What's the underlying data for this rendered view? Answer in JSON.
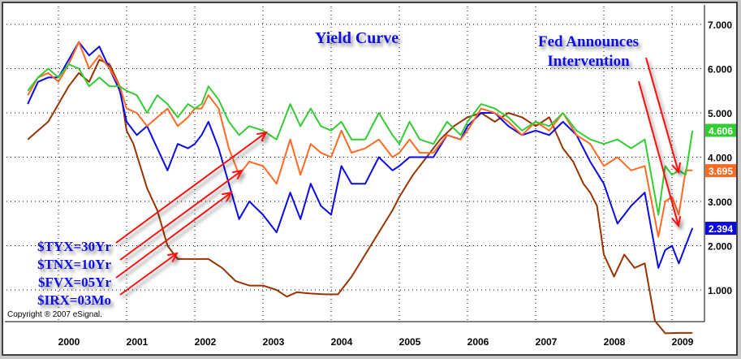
{
  "chart_data": {
    "type": "line",
    "title": "Yield Curve",
    "xlabel": "",
    "ylabel": "",
    "ylim": [
      0,
      7.3
    ],
    "x_tick_labels": [
      "2000",
      "2001",
      "2002",
      "2003",
      "2004",
      "2005",
      "2006",
      "2007",
      "2008",
      "2009"
    ],
    "y_tick_labels": [
      "7.000",
      "6.000",
      "5.000",
      "4.000",
      "3.000",
      "2.000",
      "1.000"
    ],
    "grid": true,
    "legend_position": "lower-left (text annotations)",
    "series": [
      {
        "name": "$TYX=30Yr",
        "color": "#33cc33",
        "last_value": "4.606",
        "x": [
          1999.55,
          1999.7,
          1999.85,
          2000.0,
          2000.15,
          2000.3,
          2000.45,
          2000.6,
          2000.75,
          2000.9,
          2001.0,
          2001.15,
          2001.3,
          2001.45,
          2001.6,
          2001.75,
          2001.9,
          2002.0,
          2002.1,
          2002.2,
          2002.35,
          2002.5,
          2002.65,
          2002.8,
          2003.0,
          2003.2,
          2003.4,
          2003.55,
          2003.7,
          2003.85,
          2004.0,
          2004.15,
          2004.3,
          2004.5,
          2004.7,
          2004.9,
          2005.0,
          2005.15,
          2005.3,
          2005.5,
          2005.7,
          2005.9,
          2006.0,
          2006.2,
          2006.4,
          2006.6,
          2006.8,
          2007.0,
          2007.2,
          2007.4,
          2007.6,
          2007.8,
          2008.0,
          2008.2,
          2008.4,
          2008.6,
          2008.8,
          2008.9,
          2009.0,
          2009.1,
          2009.2,
          2009.3
        ],
        "y": [
          5.5,
          5.8,
          6.0,
          5.8,
          6.1,
          6.0,
          5.6,
          5.8,
          5.6,
          5.6,
          5.5,
          5.4,
          5.0,
          5.4,
          5.2,
          4.9,
          5.2,
          5.1,
          5.2,
          5.6,
          5.3,
          4.8,
          4.5,
          4.7,
          4.6,
          4.4,
          5.2,
          4.7,
          5.1,
          4.7,
          4.6,
          4.8,
          4.4,
          4.4,
          5.0,
          4.5,
          4.3,
          4.8,
          4.4,
          4.3,
          4.8,
          4.5,
          4.8,
          5.2,
          5.1,
          4.9,
          4.6,
          4.8,
          4.7,
          5.0,
          4.6,
          4.4,
          4.3,
          4.4,
          4.2,
          4.4,
          2.7,
          3.8,
          3.6,
          3.7,
          3.6,
          4.6
        ]
      },
      {
        "name": "$TNX=10Yr",
        "color": "#ff6a22",
        "last_value": "3.695",
        "x": [
          1999.55,
          1999.7,
          1999.85,
          2000.0,
          2000.15,
          2000.3,
          2000.45,
          2000.6,
          2000.75,
          2000.9,
          2001.0,
          2001.15,
          2001.3,
          2001.45,
          2001.6,
          2001.75,
          2001.9,
          2002.0,
          2002.1,
          2002.2,
          2002.35,
          2002.5,
          2002.65,
          2002.8,
          2003.0,
          2003.2,
          2003.4,
          2003.55,
          2003.7,
          2003.85,
          2004.0,
          2004.15,
          2004.3,
          2004.5,
          2004.7,
          2004.9,
          2005.0,
          2005.15,
          2005.3,
          2005.5,
          2005.7,
          2005.9,
          2006.0,
          2006.2,
          2006.4,
          2006.6,
          2006.8,
          2007.0,
          2007.2,
          2007.4,
          2007.6,
          2007.8,
          2008.0,
          2008.2,
          2008.4,
          2008.6,
          2008.8,
          2008.9,
          2009.0,
          2009.1,
          2009.2,
          2009.3
        ],
        "y": [
          5.4,
          5.8,
          5.9,
          5.7,
          6.1,
          6.6,
          6.0,
          6.3,
          6.0,
          5.6,
          5.1,
          5.0,
          4.7,
          4.9,
          5.1,
          4.7,
          4.9,
          5.1,
          5.1,
          5.4,
          5.1,
          4.2,
          3.6,
          3.9,
          3.8,
          3.4,
          4.4,
          3.6,
          4.3,
          4.1,
          4.0,
          4.6,
          4.1,
          4.2,
          4.4,
          4.0,
          4.1,
          4.4,
          4.1,
          4.1,
          4.5,
          4.4,
          4.6,
          5.1,
          5.0,
          4.8,
          4.5,
          4.8,
          4.6,
          5.0,
          4.5,
          4.3,
          3.8,
          4.0,
          3.7,
          3.8,
          2.2,
          3.0,
          3.1,
          2.7,
          3.7,
          3.7
        ]
      },
      {
        "name": "$FVX=05Yr",
        "color": "#0a0ae8",
        "last_value": "2.394",
        "x": [
          1999.55,
          1999.7,
          1999.85,
          2000.0,
          2000.15,
          2000.3,
          2000.45,
          2000.6,
          2000.75,
          2000.9,
          2001.0,
          2001.15,
          2001.3,
          2001.45,
          2001.6,
          2001.75,
          2001.9,
          2002.0,
          2002.1,
          2002.2,
          2002.35,
          2002.5,
          2002.65,
          2002.8,
          2003.0,
          2003.2,
          2003.4,
          2003.55,
          2003.7,
          2003.85,
          2004.0,
          2004.15,
          2004.3,
          2004.5,
          2004.7,
          2004.9,
          2005.0,
          2005.15,
          2005.3,
          2005.5,
          2005.7,
          2005.9,
          2006.0,
          2006.2,
          2006.4,
          2006.6,
          2006.8,
          2007.0,
          2007.2,
          2007.4,
          2007.6,
          2007.8,
          2008.0,
          2008.2,
          2008.4,
          2008.6,
          2008.8,
          2008.9,
          2009.0,
          2009.1,
          2009.2,
          2009.3
        ],
        "y": [
          5.2,
          5.7,
          5.8,
          5.8,
          6.2,
          6.6,
          6.3,
          6.5,
          6.0,
          5.5,
          4.8,
          4.5,
          4.7,
          4.2,
          3.7,
          4.3,
          4.2,
          4.3,
          4.5,
          4.8,
          4.2,
          3.4,
          2.6,
          3.0,
          2.7,
          2.3,
          3.2,
          2.6,
          3.4,
          2.9,
          2.7,
          3.8,
          3.4,
          3.4,
          4.0,
          3.7,
          3.8,
          4.0,
          4.0,
          4.0,
          4.5,
          4.4,
          4.7,
          5.0,
          5.0,
          4.7,
          4.5,
          4.6,
          4.5,
          4.8,
          4.5,
          3.9,
          3.4,
          2.5,
          2.9,
          3.2,
          1.5,
          1.9,
          2.0,
          1.6,
          2.0,
          2.4
        ]
      },
      {
        "name": "$IRX=03Mo",
        "color": "#993300",
        "last_value": "",
        "x": [
          1999.55,
          1999.7,
          1999.85,
          2000.0,
          2000.15,
          2000.3,
          2000.45,
          2000.6,
          2000.75,
          2000.9,
          2001.0,
          2001.1,
          2001.2,
          2001.3,
          2001.45,
          2001.6,
          2001.75,
          2001.9,
          2002.0,
          2002.2,
          2002.4,
          2002.6,
          2002.8,
          2003.0,
          2003.2,
          2003.35,
          2003.5,
          2003.7,
          2003.9,
          2004.1,
          2004.3,
          2004.5,
          2004.7,
          2004.9,
          2005.0,
          2005.2,
          2005.4,
          2005.6,
          2005.8,
          2006.0,
          2006.2,
          2006.4,
          2006.6,
          2006.8,
          2007.0,
          2007.2,
          2007.4,
          2007.55,
          2007.7,
          2007.8,
          2007.9,
          2008.0,
          2008.15,
          2008.3,
          2008.45,
          2008.6,
          2008.75,
          2008.9,
          2009.1,
          2009.3
        ],
        "y": [
          4.4,
          4.6,
          4.8,
          5.2,
          5.6,
          5.9,
          5.7,
          6.2,
          6.1,
          5.6,
          4.6,
          4.3,
          3.8,
          3.3,
          2.8,
          2.0,
          1.7,
          1.7,
          1.7,
          1.7,
          1.5,
          1.2,
          1.1,
          1.1,
          1.0,
          0.85,
          0.95,
          0.92,
          0.9,
          0.9,
          1.3,
          1.8,
          2.3,
          2.8,
          3.1,
          3.6,
          4.0,
          4.4,
          4.7,
          4.9,
          5.0,
          4.8,
          5.0,
          4.9,
          4.7,
          4.9,
          4.2,
          3.9,
          3.4,
          3.2,
          2.9,
          1.8,
          1.3,
          1.8,
          1.5,
          1.6,
          0.3,
          0.02,
          0.03,
          0.03
        ]
      }
    ],
    "annotations": [
      {
        "text": "Fed Announces Intervention",
        "type": "arrow-callout"
      },
      {
        "text": "Copyright ® 2007 eSignal."
      }
    ]
  },
  "title": "Yield Curve",
  "callout_line1": "Fed Announces",
  "callout_line2": "Intervention",
  "legend": [
    "$TYX=30Yr",
    "$TNX=10Yr",
    "$FVX=05Yr",
    "$IRX=03Mo"
  ],
  "copyright": "Copyright ® 2007 eSignal.",
  "price_tags": [
    {
      "value": "4.606",
      "color": "#33cc33"
    },
    {
      "value": "3.695",
      "color": "#ff6a22"
    },
    {
      "value": "2.394",
      "color": "#0a0ae8"
    }
  ]
}
